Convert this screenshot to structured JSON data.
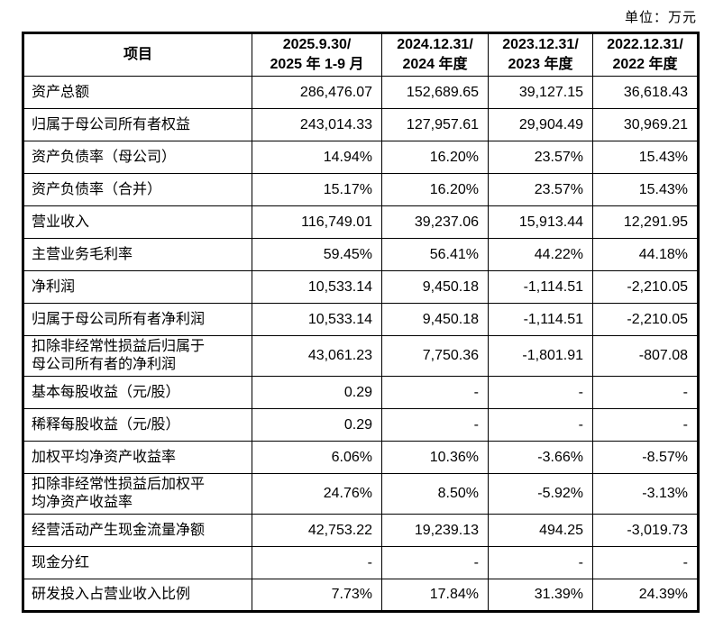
{
  "unit_label": "单位：万元",
  "table": {
    "header": {
      "item_col": "项目",
      "period_cols": [
        "2025.9.30/\n2025 年 1-9 月",
        "2024.12.31/\n2024 年度",
        "2023.12.31/\n2023 年度",
        "2022.12.31/\n2022 年度"
      ]
    },
    "rows": [
      {
        "label": "资产总额",
        "values": [
          "286,476.07",
          "152,689.65",
          "39,127.15",
          "36,618.43"
        ]
      },
      {
        "label": "归属于母公司所有者权益",
        "values": [
          "243,014.33",
          "127,957.61",
          "29,904.49",
          "30,969.21"
        ]
      },
      {
        "label": "资产负债率（母公司）",
        "values": [
          "14.94%",
          "16.20%",
          "23.57%",
          "15.43%"
        ]
      },
      {
        "label": "资产负债率（合并）",
        "values": [
          "15.17%",
          "16.20%",
          "23.57%",
          "15.43%"
        ]
      },
      {
        "label": "营业收入",
        "values": [
          "116,749.01",
          "39,237.06",
          "15,913.44",
          "12,291.95"
        ]
      },
      {
        "label": "主营业务毛利率",
        "values": [
          "59.45%",
          "56.41%",
          "44.22%",
          "44.18%"
        ]
      },
      {
        "label": "净利润",
        "values": [
          "10,533.14",
          "9,450.18",
          "-1,114.51",
          "-2,210.05"
        ]
      },
      {
        "label": "归属于母公司所有者净利润",
        "values": [
          "10,533.14",
          "9,450.18",
          "-1,114.51",
          "-2,210.05"
        ]
      },
      {
        "label": "扣除非经常性损益后归属于\n母公司所有者的净利润",
        "tall": true,
        "values": [
          "43,061.23",
          "7,750.36",
          "-1,801.91",
          "-807.08"
        ]
      },
      {
        "label": "基本每股收益（元/股）",
        "values": [
          "0.29",
          "-",
          "-",
          "-"
        ]
      },
      {
        "label": "稀释每股收益（元/股）",
        "values": [
          "0.29",
          "-",
          "-",
          "-"
        ]
      },
      {
        "label": "加权平均净资产收益率",
        "values": [
          "6.06%",
          "10.36%",
          "-3.66%",
          "-8.57%"
        ]
      },
      {
        "label": "扣除非经常性损益后加权平\n均净资产收益率",
        "tall": true,
        "values": [
          "24.76%",
          "8.50%",
          "-5.92%",
          "-3.13%"
        ]
      },
      {
        "label": "经营活动产生现金流量净额",
        "values": [
          "42,753.22",
          "19,239.13",
          "494.25",
          "-3,019.73"
        ]
      },
      {
        "label": "现金分红",
        "values": [
          "-",
          "-",
          "-",
          "-"
        ]
      },
      {
        "label": "研发投入占营业收入比例",
        "values": [
          "7.73%",
          "17.84%",
          "31.39%",
          "24.39%"
        ]
      }
    ]
  }
}
